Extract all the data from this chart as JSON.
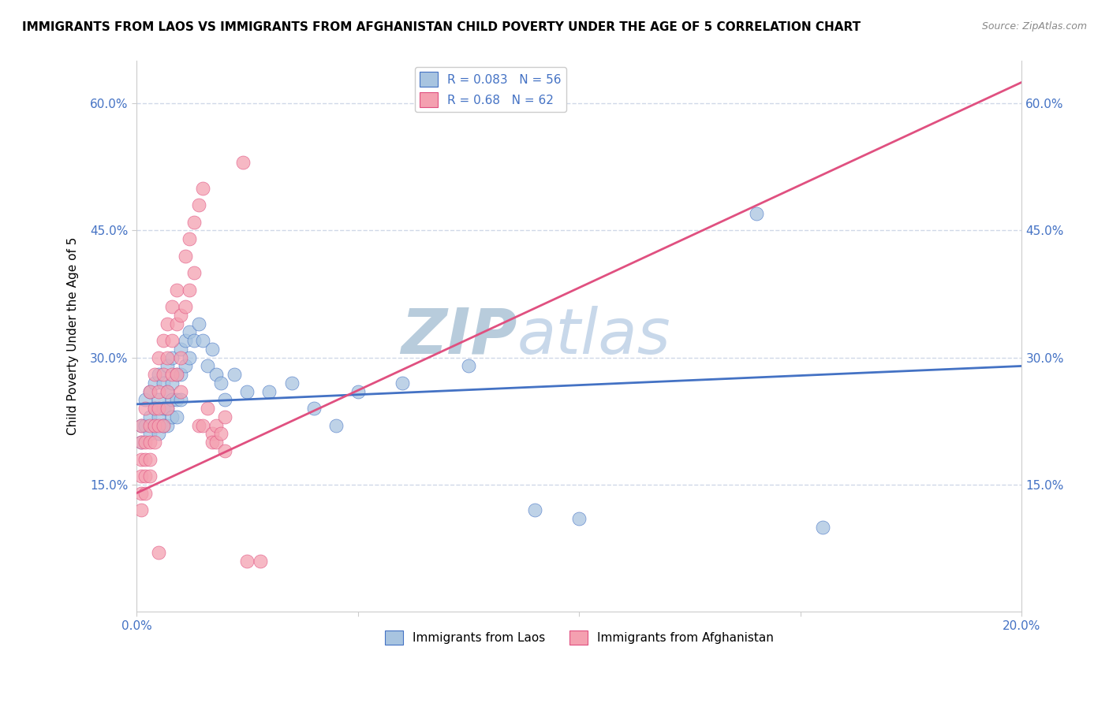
{
  "title": "IMMIGRANTS FROM LAOS VS IMMIGRANTS FROM AFGHANISTAN CHILD POVERTY UNDER THE AGE OF 5 CORRELATION CHART",
  "source": "Source: ZipAtlas.com",
  "ylabel": "Child Poverty Under the Age of 5",
  "xlim": [
    0.0,
    0.2
  ],
  "ylim": [
    0.0,
    0.65
  ],
  "xticks": [
    0.0,
    0.05,
    0.1,
    0.15,
    0.2
  ],
  "xticklabels": [
    "0.0%",
    "",
    "",
    "",
    "20.0%"
  ],
  "yticks": [
    0.15,
    0.3,
    0.45,
    0.6
  ],
  "yticklabels": [
    "15.0%",
    "30.0%",
    "45.0%",
    "60.0%"
  ],
  "laos_R": 0.083,
  "laos_N": 56,
  "afghan_R": 0.68,
  "afghan_N": 62,
  "laos_color": "#a8c4e0",
  "afghan_color": "#f4a0b0",
  "laos_line_color": "#4472c4",
  "afghan_line_color": "#e05080",
  "laos_scatter": [
    [
      0.001,
      0.22
    ],
    [
      0.001,
      0.2
    ],
    [
      0.002,
      0.25
    ],
    [
      0.002,
      0.22
    ],
    [
      0.003,
      0.26
    ],
    [
      0.003,
      0.23
    ],
    [
      0.003,
      0.21
    ],
    [
      0.004,
      0.27
    ],
    [
      0.004,
      0.24
    ],
    [
      0.004,
      0.22
    ],
    [
      0.005,
      0.28
    ],
    [
      0.005,
      0.25
    ],
    [
      0.005,
      0.23
    ],
    [
      0.005,
      0.21
    ],
    [
      0.006,
      0.27
    ],
    [
      0.006,
      0.24
    ],
    [
      0.006,
      0.22
    ],
    [
      0.007,
      0.29
    ],
    [
      0.007,
      0.26
    ],
    [
      0.007,
      0.24
    ],
    [
      0.007,
      0.22
    ],
    [
      0.008,
      0.3
    ],
    [
      0.008,
      0.27
    ],
    [
      0.008,
      0.25
    ],
    [
      0.008,
      0.23
    ],
    [
      0.009,
      0.28
    ],
    [
      0.009,
      0.25
    ],
    [
      0.009,
      0.23
    ],
    [
      0.01,
      0.31
    ],
    [
      0.01,
      0.28
    ],
    [
      0.01,
      0.25
    ],
    [
      0.011,
      0.32
    ],
    [
      0.011,
      0.29
    ],
    [
      0.012,
      0.33
    ],
    [
      0.012,
      0.3
    ],
    [
      0.013,
      0.32
    ],
    [
      0.014,
      0.34
    ],
    [
      0.015,
      0.32
    ],
    [
      0.016,
      0.29
    ],
    [
      0.017,
      0.31
    ],
    [
      0.018,
      0.28
    ],
    [
      0.019,
      0.27
    ],
    [
      0.02,
      0.25
    ],
    [
      0.022,
      0.28
    ],
    [
      0.025,
      0.26
    ],
    [
      0.03,
      0.26
    ],
    [
      0.035,
      0.27
    ],
    [
      0.04,
      0.24
    ],
    [
      0.045,
      0.22
    ],
    [
      0.05,
      0.26
    ],
    [
      0.06,
      0.27
    ],
    [
      0.075,
      0.29
    ],
    [
      0.09,
      0.12
    ],
    [
      0.1,
      0.11
    ],
    [
      0.14,
      0.47
    ],
    [
      0.155,
      0.1
    ]
  ],
  "afghan_scatter": [
    [
      0.001,
      0.22
    ],
    [
      0.001,
      0.2
    ],
    [
      0.001,
      0.18
    ],
    [
      0.001,
      0.16
    ],
    [
      0.001,
      0.14
    ],
    [
      0.001,
      0.12
    ],
    [
      0.002,
      0.24
    ],
    [
      0.002,
      0.2
    ],
    [
      0.002,
      0.18
    ],
    [
      0.002,
      0.16
    ],
    [
      0.002,
      0.14
    ],
    [
      0.003,
      0.26
    ],
    [
      0.003,
      0.22
    ],
    [
      0.003,
      0.2
    ],
    [
      0.003,
      0.18
    ],
    [
      0.003,
      0.16
    ],
    [
      0.004,
      0.28
    ],
    [
      0.004,
      0.24
    ],
    [
      0.004,
      0.22
    ],
    [
      0.004,
      0.2
    ],
    [
      0.005,
      0.3
    ],
    [
      0.005,
      0.26
    ],
    [
      0.005,
      0.24
    ],
    [
      0.005,
      0.22
    ],
    [
      0.005,
      0.07
    ],
    [
      0.006,
      0.32
    ],
    [
      0.006,
      0.28
    ],
    [
      0.006,
      0.22
    ],
    [
      0.007,
      0.34
    ],
    [
      0.007,
      0.3
    ],
    [
      0.007,
      0.26
    ],
    [
      0.007,
      0.24
    ],
    [
      0.008,
      0.36
    ],
    [
      0.008,
      0.32
    ],
    [
      0.008,
      0.28
    ],
    [
      0.009,
      0.38
    ],
    [
      0.009,
      0.34
    ],
    [
      0.009,
      0.28
    ],
    [
      0.01,
      0.35
    ],
    [
      0.01,
      0.3
    ],
    [
      0.01,
      0.26
    ],
    [
      0.011,
      0.42
    ],
    [
      0.011,
      0.36
    ],
    [
      0.012,
      0.44
    ],
    [
      0.012,
      0.38
    ],
    [
      0.013,
      0.46
    ],
    [
      0.013,
      0.4
    ],
    [
      0.014,
      0.48
    ],
    [
      0.014,
      0.22
    ],
    [
      0.015,
      0.5
    ],
    [
      0.015,
      0.22
    ],
    [
      0.016,
      0.24
    ],
    [
      0.017,
      0.21
    ],
    [
      0.017,
      0.2
    ],
    [
      0.018,
      0.22
    ],
    [
      0.018,
      0.2
    ],
    [
      0.019,
      0.21
    ],
    [
      0.02,
      0.19
    ],
    [
      0.02,
      0.23
    ],
    [
      0.024,
      0.53
    ],
    [
      0.025,
      0.06
    ],
    [
      0.028,
      0.06
    ]
  ],
  "watermark_zip": "ZIP",
  "watermark_atlas": "atlas",
  "watermark_color": "#c8d8ea",
  "background_color": "#ffffff",
  "grid_color": "#d0d8e8",
  "title_fontsize": 11,
  "axis_label_fontsize": 11,
  "tick_fontsize": 11,
  "legend_fontsize": 11
}
